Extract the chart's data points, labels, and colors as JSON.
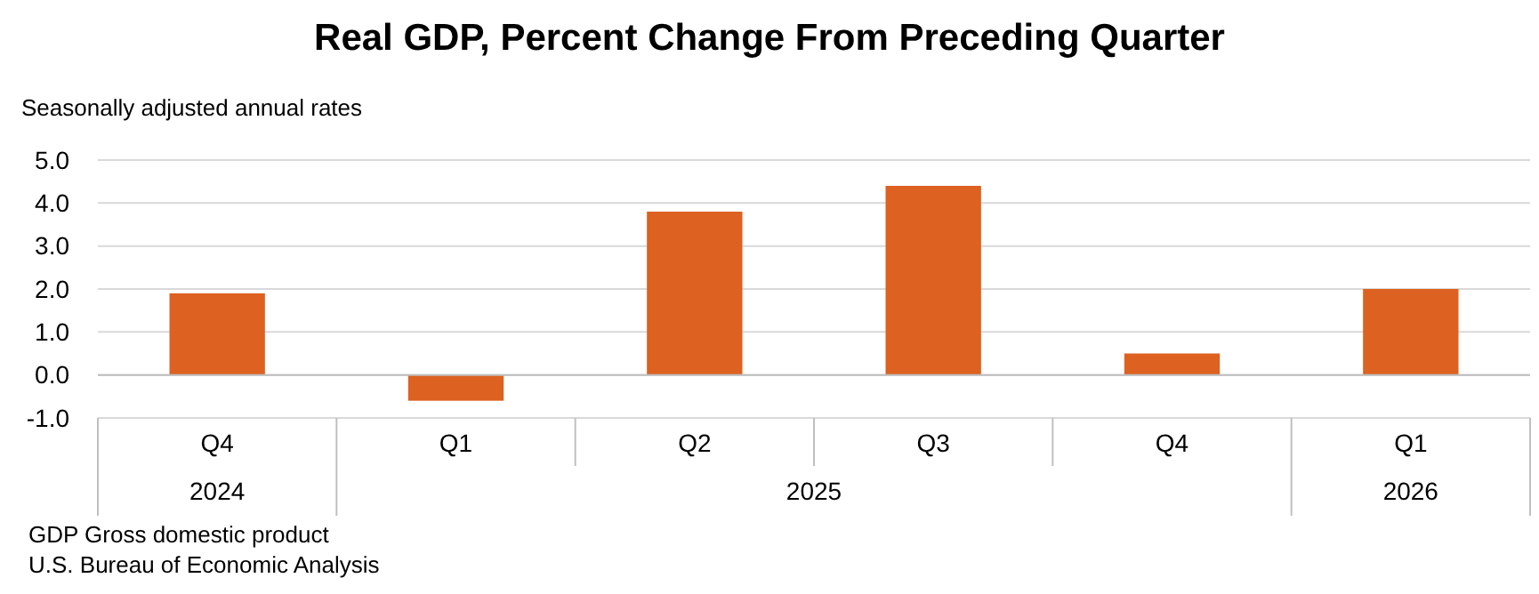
{
  "chart_data": {
    "type": "bar",
    "title": "Real GDP, Percent Change From Preceding Quarter",
    "ylabel": "Seasonally adjusted annual rates",
    "categories": [
      "Q4",
      "Q1",
      "Q2",
      "Q3",
      "Q4",
      "Q1"
    ],
    "values": [
      1.9,
      -0.6,
      3.8,
      4.4,
      0.5,
      2.0
    ],
    "color": "#dd6120",
    "ylim": [
      -1,
      5
    ],
    "yticks": [
      {
        "value": -1,
        "label": "-1.0"
      },
      {
        "value": 0,
        "label": "0.0"
      },
      {
        "value": 1,
        "label": "1.0"
      },
      {
        "value": 2,
        "label": "2.0"
      },
      {
        "value": 3,
        "label": "3.0"
      },
      {
        "value": 4,
        "label": "4.0"
      },
      {
        "value": 5,
        "label": "5.0"
      }
    ],
    "grid": "y",
    "annotations": [
      "2024",
      "2025",
      "2026",
      "GDP Gross domestic product",
      "U.S. Bureau of Economic Analysis"
    ]
  }
}
